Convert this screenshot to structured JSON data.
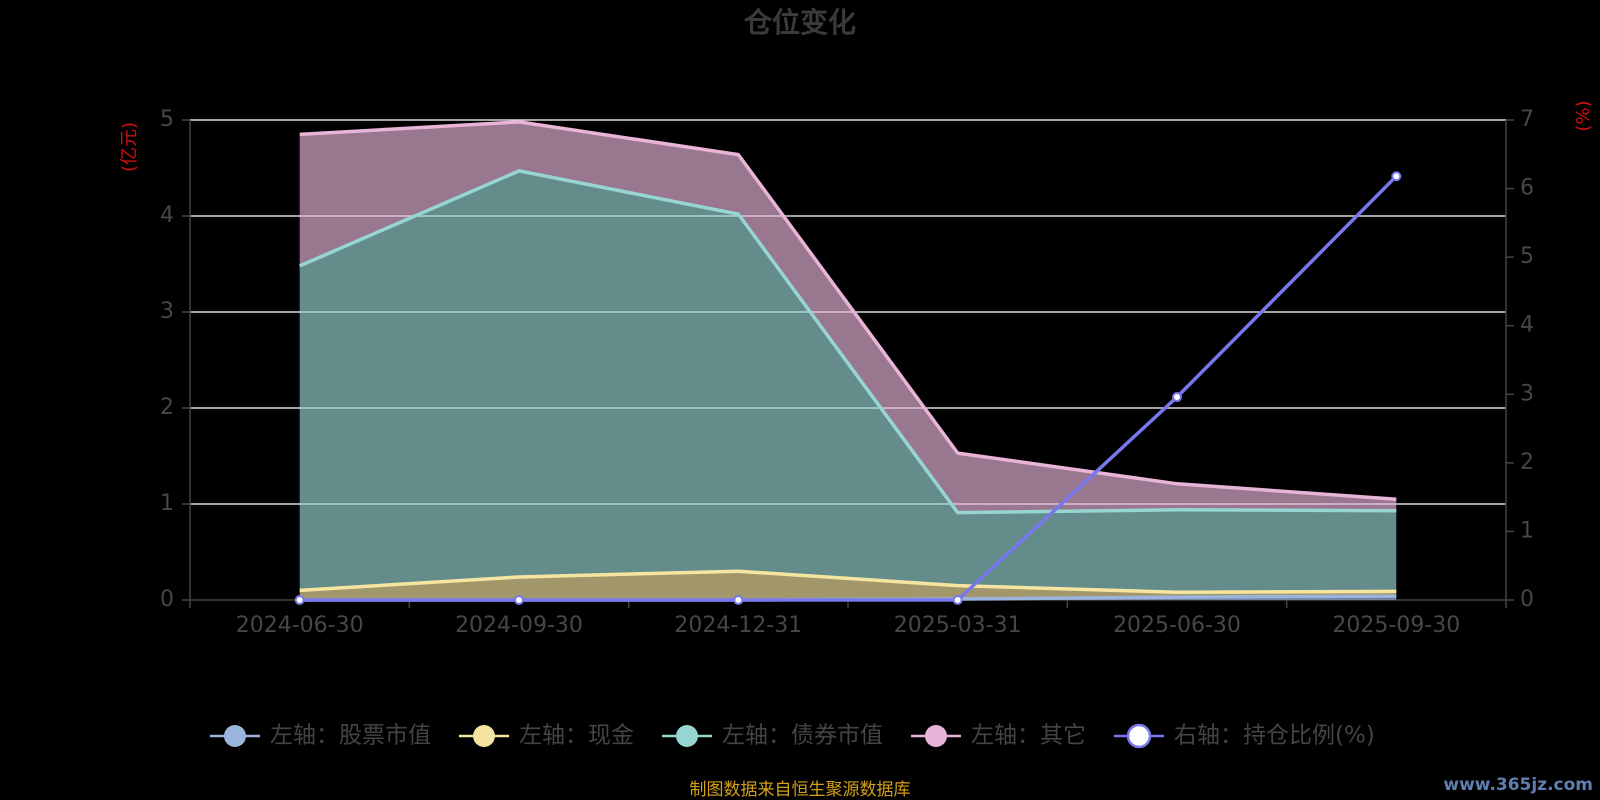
{
  "chart_data": {
    "type": "area",
    "title": "仓位变化",
    "x": [
      "2024-06-30",
      "2024-09-30",
      "2024-12-31",
      "2025-03-31",
      "2025-06-30",
      "2025-09-30"
    ],
    "left_axis": {
      "unit": "(亿元)",
      "ylim": [
        0,
        5
      ],
      "ticks": [
        0,
        1,
        2,
        3,
        4,
        5
      ]
    },
    "right_axis": {
      "unit": "(%)",
      "ylim": [
        0,
        7
      ],
      "ticks": [
        0,
        1,
        2,
        3,
        4,
        5,
        6,
        7
      ]
    },
    "series": [
      {
        "name": "左轴：股票市值",
        "axis": "left",
        "stacked": true,
        "color": "#9ab4dd",
        "values": [
          0,
          0,
          0,
          0.01,
          0.03,
          0.04
        ]
      },
      {
        "name": "左轴：现金",
        "axis": "left",
        "stacked": true,
        "color": "#f6e5a1",
        "values": [
          0.1,
          0.24,
          0.3,
          0.14,
          0.05,
          0.05
        ]
      },
      {
        "name": "左轴：债券市值",
        "axis": "left",
        "stacked": true,
        "color": "#97d5d2",
        "values": [
          3.38,
          4.23,
          3.72,
          0.76,
          0.86,
          0.84
        ]
      },
      {
        "name": "左轴：其它",
        "axis": "left",
        "stacked": true,
        "color": "#e8b4d8",
        "values": [
          1.37,
          0.51,
          0.62,
          0.62,
          0.27,
          0.12
        ]
      },
      {
        "name": "右轴：持仓比例(%)",
        "axis": "right",
        "stacked": false,
        "color": "#7777ee",
        "values": [
          0,
          0,
          0,
          0,
          2.96,
          6.18
        ]
      }
    ],
    "grid": true,
    "legend_position": "bottom"
  },
  "footer": {
    "source": "制图数据来自恒生聚源数据库"
  },
  "watermark": {
    "text": "www.365jz.com"
  }
}
